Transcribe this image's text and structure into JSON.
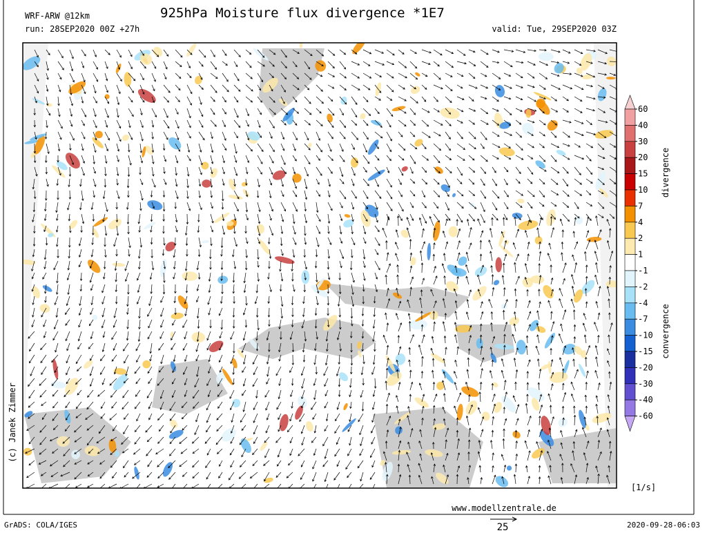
{
  "header": {
    "model": "WRF-ARW @12km",
    "title": "925hPa Moisture flux divergence *1E7",
    "run": "run: 28SEP2020 00Z +27h",
    "valid": "valid: Tue, 29SEP2020 03Z"
  },
  "colorbar": {
    "levels": [
      60,
      40,
      30,
      20,
      15,
      10,
      7,
      4,
      2,
      1,
      -1,
      -2,
      -4,
      -7,
      -10,
      -15,
      -20,
      -30,
      -40,
      -60
    ],
    "colors": [
      "#f6d0d0",
      "#f0a0a0",
      "#e07070",
      "#c84040",
      "#a81818",
      "#c80000",
      "#e83000",
      "#f39000",
      "#f8c850",
      "#fdeab0",
      "#ffffff",
      "#e2f4fc",
      "#a8e2f8",
      "#68bcf0",
      "#3a8ce0",
      "#1460d0",
      "#1a30a0",
      "#3030b8",
      "#6050d0",
      "#9478e4",
      "#c4a8f4"
    ],
    "upper_label": "divergence",
    "lower_label": "convergence",
    "unit": "[1/s]"
  },
  "footer": {
    "credit": "(c) Janek Zimmer",
    "website": "www.modellzentrale.de",
    "software": "GrADS: COLA/IGES",
    "timestamp": "2020-09-28-06:03",
    "vector_ref": "25"
  }
}
